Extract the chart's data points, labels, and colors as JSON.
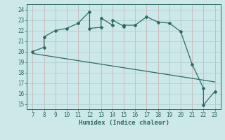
{
  "xlabel": "Humidex (Indice chaleur)",
  "background_color": "#cde8e8",
  "grid_color": "#b0d4d4",
  "line_color": "#2d6b60",
  "x_hours": [
    7,
    8,
    8,
    9,
    10,
    11,
    12,
    12,
    13,
    13,
    14,
    14,
    15,
    15,
    16,
    17,
    18,
    19,
    20,
    21,
    22,
    22,
    23
  ],
  "y_humidex": [
    20.0,
    20.4,
    21.4,
    22.0,
    22.2,
    22.7,
    23.8,
    22.2,
    22.3,
    23.2,
    22.5,
    23.0,
    22.4,
    22.5,
    22.5,
    23.3,
    22.8,
    22.7,
    21.9,
    18.8,
    16.5,
    14.9,
    16.2
  ],
  "ref_line_x": [
    7,
    23
  ],
  "ref_line_y": [
    19.8,
    17.1
  ],
  "xlim": [
    6.5,
    23.5
  ],
  "ylim": [
    14.5,
    24.5
  ],
  "xticks": [
    7,
    8,
    9,
    10,
    11,
    12,
    13,
    14,
    15,
    16,
    17,
    18,
    19,
    20,
    21,
    22,
    23
  ],
  "yticks": [
    15,
    16,
    17,
    18,
    19,
    20,
    21,
    22,
    23,
    24
  ]
}
